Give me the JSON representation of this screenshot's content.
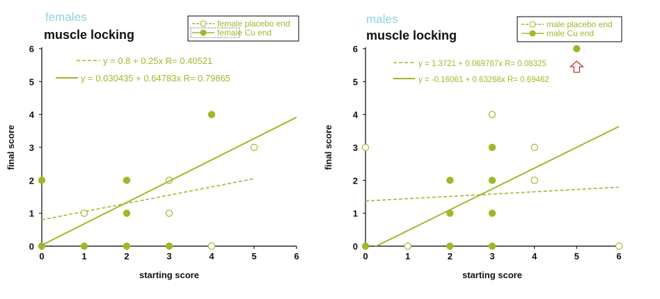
{
  "colors": {
    "series": "#9aba2a",
    "subject": "#8ecfe0",
    "axis": "#000000",
    "text": "#111111",
    "arrow": "#cc2e3c"
  },
  "chart_data": [
    {
      "type": "scatter",
      "subject": "females",
      "title": "muscle locking",
      "xlabel": "starting score",
      "ylabel": "final score",
      "xlim": [
        0,
        6
      ],
      "ylim": [
        0,
        6
      ],
      "xticks": [
        "0",
        "1",
        "2",
        "3",
        "4",
        "5",
        "6"
      ],
      "yticks": [
        "0",
        "1",
        "2",
        "3",
        "4",
        "5",
        "6"
      ],
      "grid": false,
      "legend_position": "top-right",
      "series": [
        {
          "name": "female placebo end",
          "marker": "open-circle",
          "points": [
            [
              1,
              1
            ],
            [
              3,
              2
            ],
            [
              3,
              1
            ],
            [
              4,
              0
            ],
            [
              5,
              3
            ]
          ],
          "fit": {
            "intercept": 0.8,
            "slope": 0.25,
            "x_range": [
              0,
              5
            ],
            "style": "dashed",
            "label": "y = 0.8 + 0.25x   R= 0.40521"
          }
        },
        {
          "name": "female  Cu end",
          "marker": "filled-circle",
          "points": [
            [
              0,
              2
            ],
            [
              0,
              0
            ],
            [
              1,
              0
            ],
            [
              2,
              2
            ],
            [
              2,
              1
            ],
            [
              2,
              0
            ],
            [
              3,
              0
            ],
            [
              4,
              4
            ]
          ],
          "fit": {
            "intercept": 0.030435,
            "slope": 0.64783,
            "x_range": [
              0,
              6
            ],
            "style": "solid",
            "label": "y = 0.030435 + 0.64783x   R= 0.79865"
          }
        }
      ]
    },
    {
      "type": "scatter",
      "subject": "males",
      "title": "muscle locking",
      "xlabel": "starting score",
      "ylabel": "final score",
      "xlim": [
        0,
        6
      ],
      "ylim": [
        0,
        6
      ],
      "xticks": [
        "0",
        "1",
        "2",
        "3",
        "4",
        "5",
        "6"
      ],
      "yticks": [
        "0",
        "1",
        "2",
        "3",
        "4",
        "5",
        "6"
      ],
      "grid": false,
      "legend_position": "top-right",
      "series": [
        {
          "name": "male placebo end",
          "marker": "open-circle",
          "points": [
            [
              0,
              3
            ],
            [
              1,
              0
            ],
            [
              3,
              4
            ],
            [
              4,
              3
            ],
            [
              4,
              2
            ],
            [
              6,
              0
            ]
          ],
          "fit": {
            "intercept": 1.3721,
            "slope": 0.069767,
            "x_range": [
              0,
              6
            ],
            "style": "dashed",
            "label": "y = 1.3721 + 0.069767x   R= 0.08325"
          }
        },
        {
          "name": "male Cu end",
          "marker": "filled-circle",
          "points": [
            [
              0,
              0
            ],
            [
              2,
              2
            ],
            [
              2,
              1
            ],
            [
              2,
              0
            ],
            [
              3,
              3
            ],
            [
              3,
              2
            ],
            [
              3,
              1
            ],
            [
              3,
              0
            ],
            [
              5,
              6
            ]
          ],
          "fit": {
            "intercept": -0.16061,
            "slope": 0.63268,
            "x_range": [
              0,
              6
            ],
            "style": "solid",
            "label": "y = -0.16061 + 0.63268x   R= 0.69462"
          }
        }
      ],
      "annotations": [
        {
          "type": "up-arrow",
          "x": 5,
          "y": 5.45
        }
      ]
    }
  ]
}
